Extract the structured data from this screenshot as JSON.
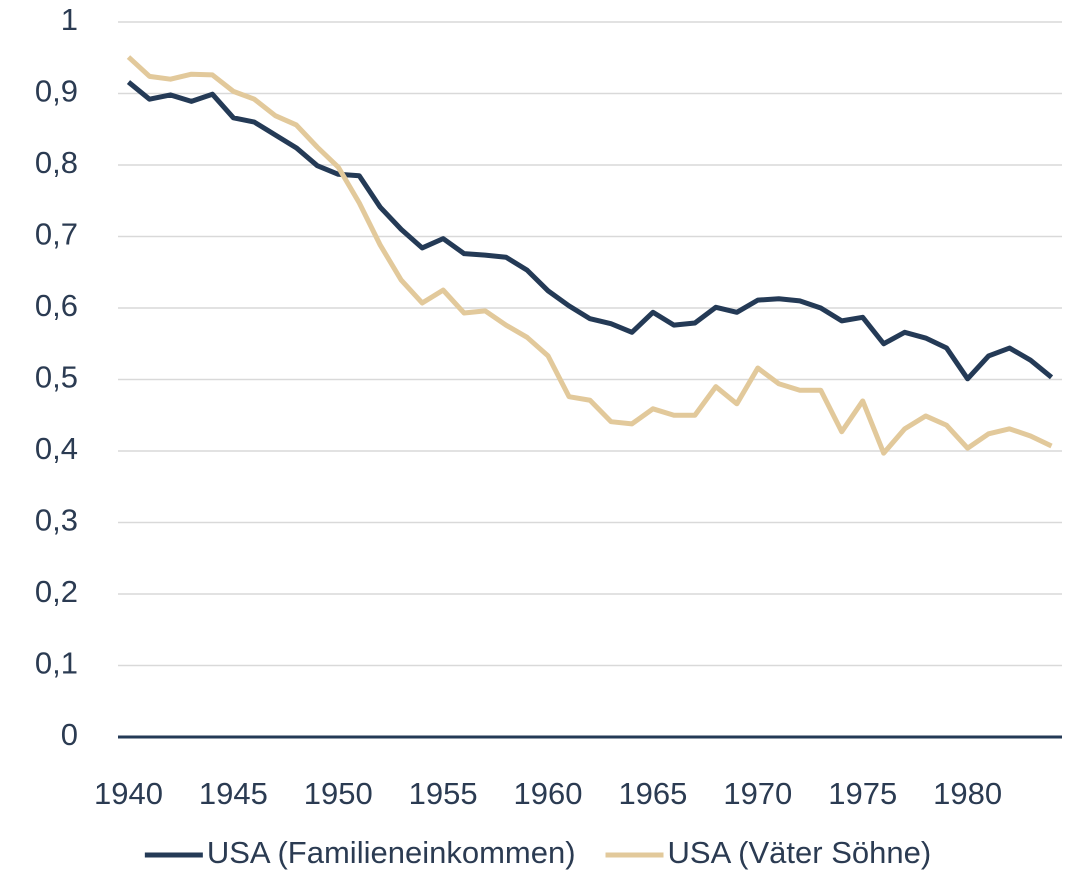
{
  "chart_data": {
    "type": "line",
    "x": [
      1940,
      1941,
      1942,
      1943,
      1944,
      1945,
      1946,
      1947,
      1948,
      1949,
      1950,
      1951,
      1952,
      1953,
      1954,
      1955,
      1956,
      1957,
      1958,
      1959,
      1960,
      1961,
      1962,
      1963,
      1964,
      1965,
      1966,
      1967,
      1968,
      1969,
      1970,
      1971,
      1972,
      1973,
      1974,
      1975,
      1976,
      1977,
      1978,
      1979,
      1980,
      1981,
      1982,
      1983,
      1984
    ],
    "series": [
      {
        "name": "USA (Familieneinkommen)",
        "color": "#243a56",
        "values": [
          0.916,
          0.892,
          0.898,
          0.889,
          0.899,
          0.866,
          0.86,
          0.842,
          0.824,
          0.799,
          0.787,
          0.785,
          0.741,
          0.71,
          0.684,
          0.697,
          0.676,
          0.674,
          0.671,
          0.653,
          0.624,
          0.603,
          0.585,
          0.578,
          0.566,
          0.594,
          0.576,
          0.579,
          0.601,
          0.594,
          0.611,
          0.613,
          0.61,
          0.6,
          0.582,
          0.587,
          0.55,
          0.566,
          0.558,
          0.544,
          0.501,
          0.533,
          0.544,
          0.527,
          0.503
        ]
      },
      {
        "name": "USA (Väter Söhne)",
        "color": "#e2c99b",
        "values": [
          0.951,
          0.924,
          0.92,
          0.927,
          0.926,
          0.903,
          0.892,
          0.869,
          0.856,
          0.825,
          0.797,
          0.747,
          0.688,
          0.639,
          0.607,
          0.625,
          0.593,
          0.596,
          0.576,
          0.559,
          0.533,
          0.476,
          0.471,
          0.441,
          0.438,
          0.459,
          0.45,
          0.45,
          0.49,
          0.466,
          0.516,
          0.494,
          0.485,
          0.485,
          0.427,
          0.47,
          0.397,
          0.431,
          0.449,
          0.436,
          0.404,
          0.424,
          0.431,
          0.421,
          0.407
        ]
      }
    ],
    "xlim": [
      1939.5,
      1984.5
    ],
    "xticks": [
      1940,
      1945,
      1950,
      1955,
      1960,
      1965,
      1970,
      1975,
      1980
    ],
    "ylim": [
      0,
      1
    ],
    "yticks": [
      0,
      {
        "value": 0.1,
        "label": "0,1"
      },
      {
        "value": 0.2,
        "label": "0,2"
      },
      {
        "value": 0.3,
        "label": "0,3"
      },
      {
        "value": 0.4,
        "label": "0,4"
      },
      {
        "value": 0.5,
        "label": "0,5"
      },
      {
        "value": 0.6,
        "label": "0,6"
      },
      {
        "value": 0.7,
        "label": "0,7"
      },
      {
        "value": 0.8,
        "label": "0,8"
      },
      {
        "value": 0.9,
        "label": "0,9"
      },
      1
    ],
    "grid": true,
    "legend": "bottom"
  }
}
